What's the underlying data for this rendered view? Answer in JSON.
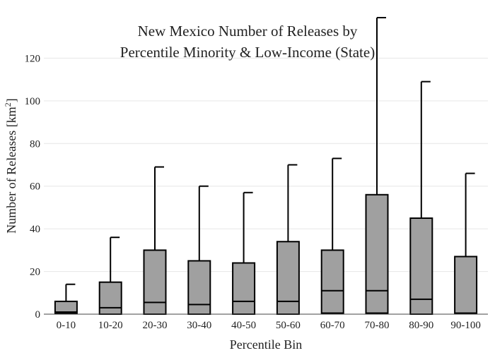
{
  "chart_data": {
    "type": "box",
    "title_lines": [
      "New Mexico Number of Releases by",
      "Percentile Minority & Low-Income (State)"
    ],
    "xlabel": "Percentile Bin",
    "ylabel_text": "Number of Releases  [km",
    "ylabel_sup": "2",
    "ylabel_close": "]",
    "ylim": [
      0,
      138
    ],
    "yticks": [
      0,
      20,
      40,
      60,
      80,
      100,
      120
    ],
    "grid": true,
    "categories": [
      "0-10",
      "10-20",
      "20-30",
      "30-40",
      "40-50",
      "50-60",
      "60-70",
      "70-80",
      "80-90",
      "90-100"
    ],
    "boxes": [
      {
        "min": 0,
        "q1": 0.5,
        "median": 1,
        "q3": 6,
        "max": 14
      },
      {
        "min": 0,
        "q1": 0,
        "median": 3,
        "q3": 15,
        "max": 36
      },
      {
        "min": 0,
        "q1": 0,
        "median": 5.5,
        "q3": 30,
        "max": 69
      },
      {
        "min": 0,
        "q1": 0,
        "median": 4.5,
        "q3": 25,
        "max": 60
      },
      {
        "min": 0,
        "q1": 0,
        "median": 6,
        "q3": 24,
        "max": 57
      },
      {
        "min": 0,
        "q1": 0,
        "median": 6,
        "q3": 34,
        "max": 70
      },
      {
        "min": 0,
        "q1": 0.5,
        "median": 11,
        "q3": 30,
        "max": 73
      },
      {
        "min": 0,
        "q1": 0.5,
        "median": 11,
        "q3": 56,
        "max": 139
      },
      {
        "min": 0,
        "q1": 0,
        "median": 7,
        "q3": 45,
        "max": 109
      },
      {
        "min": 0,
        "q1": 0.3,
        "median": 0.5,
        "q3": 27,
        "max": 66
      }
    ],
    "box_color": "#a0a0a0",
    "line_color": "#000000"
  }
}
